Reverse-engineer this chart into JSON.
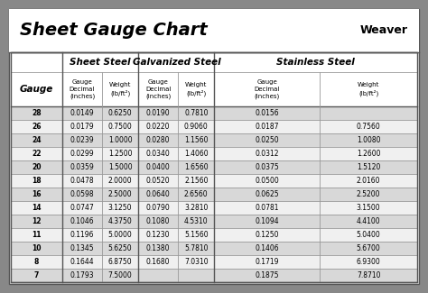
{
  "title": "Sheet Gauge Chart",
  "bg_outer": "#888888",
  "bg_inner": "#f2f2f2",
  "bg_title": "#ffffff",
  "bg_header": "#ffffff",
  "bg_data_light": "#d8d8d8",
  "bg_data_white": "#f0f0f0",
  "line_color": "#999999",
  "gauges": [
    28,
    26,
    24,
    22,
    20,
    18,
    16,
    14,
    12,
    11,
    10,
    8,
    7
  ],
  "sheet_steel": [
    [
      "0.0149",
      "0.6250"
    ],
    [
      "0.0179",
      "0.7500"
    ],
    [
      "0.0239",
      "1.0000"
    ],
    [
      "0.0299",
      "1.2500"
    ],
    [
      "0.0359",
      "1.5000"
    ],
    [
      "0.0478",
      "2.0000"
    ],
    [
      "0.0598",
      "2.5000"
    ],
    [
      "0.0747",
      "3.1250"
    ],
    [
      "0.1046",
      "4.3750"
    ],
    [
      "0.1196",
      "5.0000"
    ],
    [
      "0.1345",
      "5.6250"
    ],
    [
      "0.1644",
      "6.8750"
    ],
    [
      "0.1793",
      "7.5000"
    ]
  ],
  "galvanized_steel": [
    [
      "0.0190",
      "0.7810"
    ],
    [
      "0.0220",
      "0.9060"
    ],
    [
      "0.0280",
      "1.1560"
    ],
    [
      "0.0340",
      "1.4060"
    ],
    [
      "0.0400",
      "1.6560"
    ],
    [
      "0.0520",
      "2.1560"
    ],
    [
      "0.0640",
      "2.6560"
    ],
    [
      "0.0790",
      "3.2810"
    ],
    [
      "0.1080",
      "4.5310"
    ],
    [
      "0.1230",
      "5.1560"
    ],
    [
      "0.1380",
      "5.7810"
    ],
    [
      "0.1680",
      "7.0310"
    ],
    [
      "",
      ""
    ]
  ],
  "stainless_steel": [
    [
      "0.0156",
      ""
    ],
    [
      "0.0187",
      "0.7560"
    ],
    [
      "0.0250",
      "1.0080"
    ],
    [
      "0.0312",
      "1.2600"
    ],
    [
      "0.0375",
      "1.5120"
    ],
    [
      "0.0500",
      "2.0160"
    ],
    [
      "0.0625",
      "2.5200"
    ],
    [
      "0.0781",
      "3.1500"
    ],
    [
      "0.1094",
      "4.4100"
    ],
    [
      "0.1250",
      "5.0400"
    ],
    [
      "0.1406",
      "5.6700"
    ],
    [
      "0.1719",
      "6.9300"
    ],
    [
      "0.1875",
      "7.8710"
    ]
  ]
}
